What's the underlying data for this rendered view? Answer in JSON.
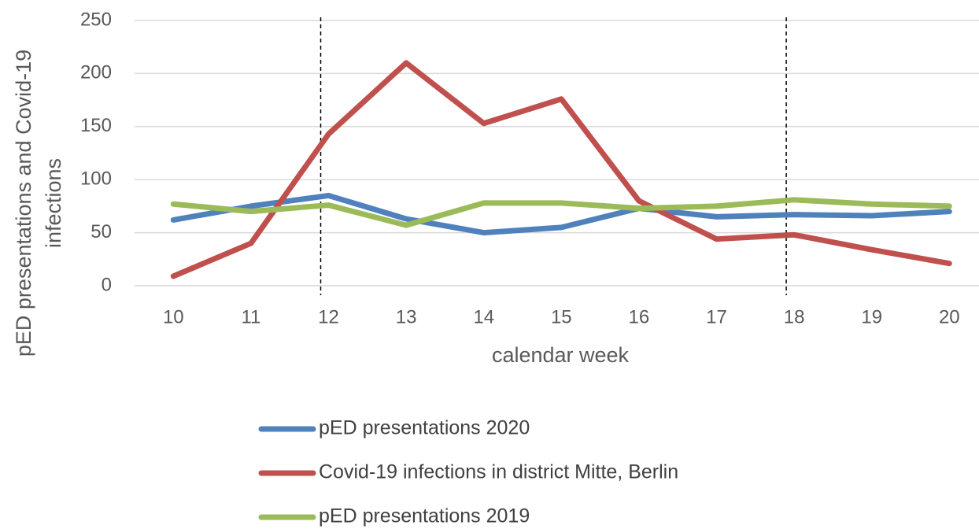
{
  "chart_data": {
    "type": "line",
    "x_label": "calendar week",
    "y_label": [
      "pED presentations and Covid-19",
      "infections"
    ],
    "categories": [
      "10",
      "11",
      "12",
      "13",
      "14",
      "15",
      "16",
      "17",
      "18",
      "19",
      "20"
    ],
    "series": [
      {
        "name": "pED presentations 2020",
        "color": "#4f81bd",
        "values": [
          62,
          75,
          85,
          63,
          50,
          55,
          73,
          65,
          67,
          66,
          70
        ]
      },
      {
        "name": "Covid-19 infections in district Mitte, Berlin",
        "color": "#c0504d",
        "values": [
          9,
          40,
          143,
          210,
          153,
          176,
          80,
          44,
          48,
          34,
          21
        ]
      },
      {
        "name": "pED presentations 2019",
        "color": "#9bbb59",
        "values": [
          77,
          70,
          76,
          57,
          78,
          78,
          73,
          75,
          81,
          77,
          75
        ]
      }
    ],
    "vertical_lines": [
      12,
      18
    ],
    "ylim": [
      0,
      250
    ],
    "yticks": [
      0,
      50,
      100,
      150,
      200,
      250
    ],
    "grid": true,
    "legend": "bottom"
  }
}
